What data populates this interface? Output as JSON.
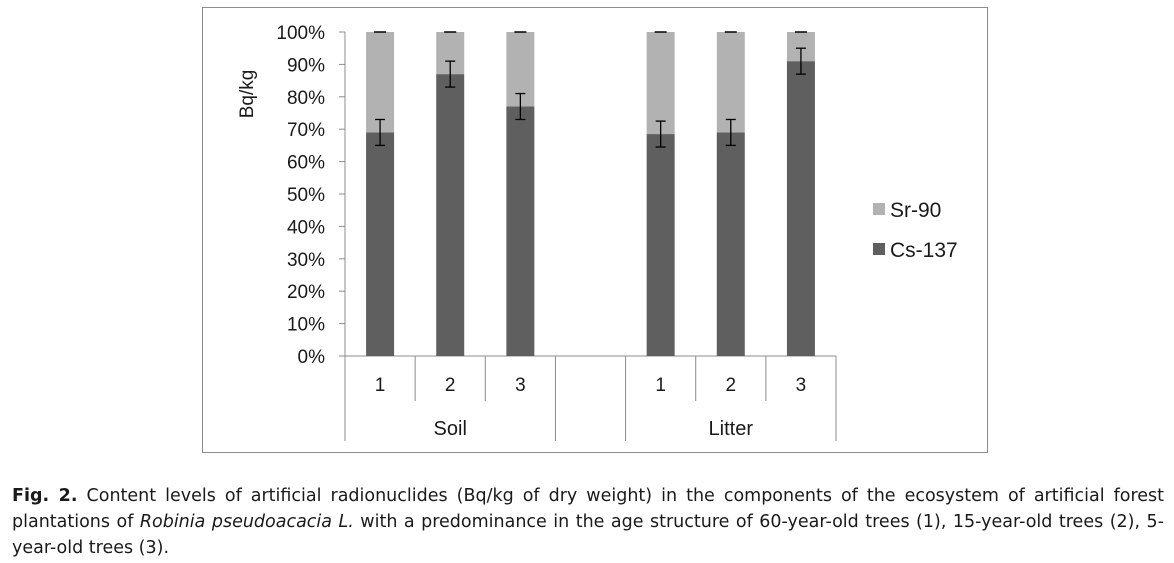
{
  "chart_data": {
    "type": "bar",
    "stacked": true,
    "ylabel": "Bq/kg",
    "yticks": [
      "0%",
      "10%",
      "20%",
      "30%",
      "40%",
      "50%",
      "60%",
      "70%",
      "80%",
      "90%",
      "100%"
    ],
    "ylim": [
      0,
      100
    ],
    "groups": [
      {
        "label": "Soil",
        "categories": [
          "1",
          "2",
          "3"
        ]
      },
      {
        "label": "Litter",
        "categories": [
          "1",
          "2",
          "3"
        ]
      }
    ],
    "series": [
      {
        "name": "Cs-137",
        "color": "#5f5f5f",
        "values": [
          69,
          87,
          77,
          68.5,
          69,
          91
        ],
        "error": [
          4,
          4,
          4,
          4,
          4,
          4
        ]
      },
      {
        "name": "Sr-90",
        "color": "#b2b2b2",
        "values": [
          31,
          13,
          23,
          31.5,
          31,
          9
        ]
      }
    ],
    "legend_order": [
      "Sr-90",
      "Cs-137"
    ],
    "legend_position": "right",
    "grid": false
  },
  "caption": {
    "fig_label": "Fig. 2.",
    "text_1": " Content levels of artificial radionuclides (Bq/kg of dry weight) in the components of the ecosystem of artificial forest plantations of ",
    "species": "Robinia pseudoacacia L.",
    "text_2": " with a predominance in the age structure of 60-year-old trees (1), 15-year-old trees (2), 5-year-old trees (3)."
  }
}
